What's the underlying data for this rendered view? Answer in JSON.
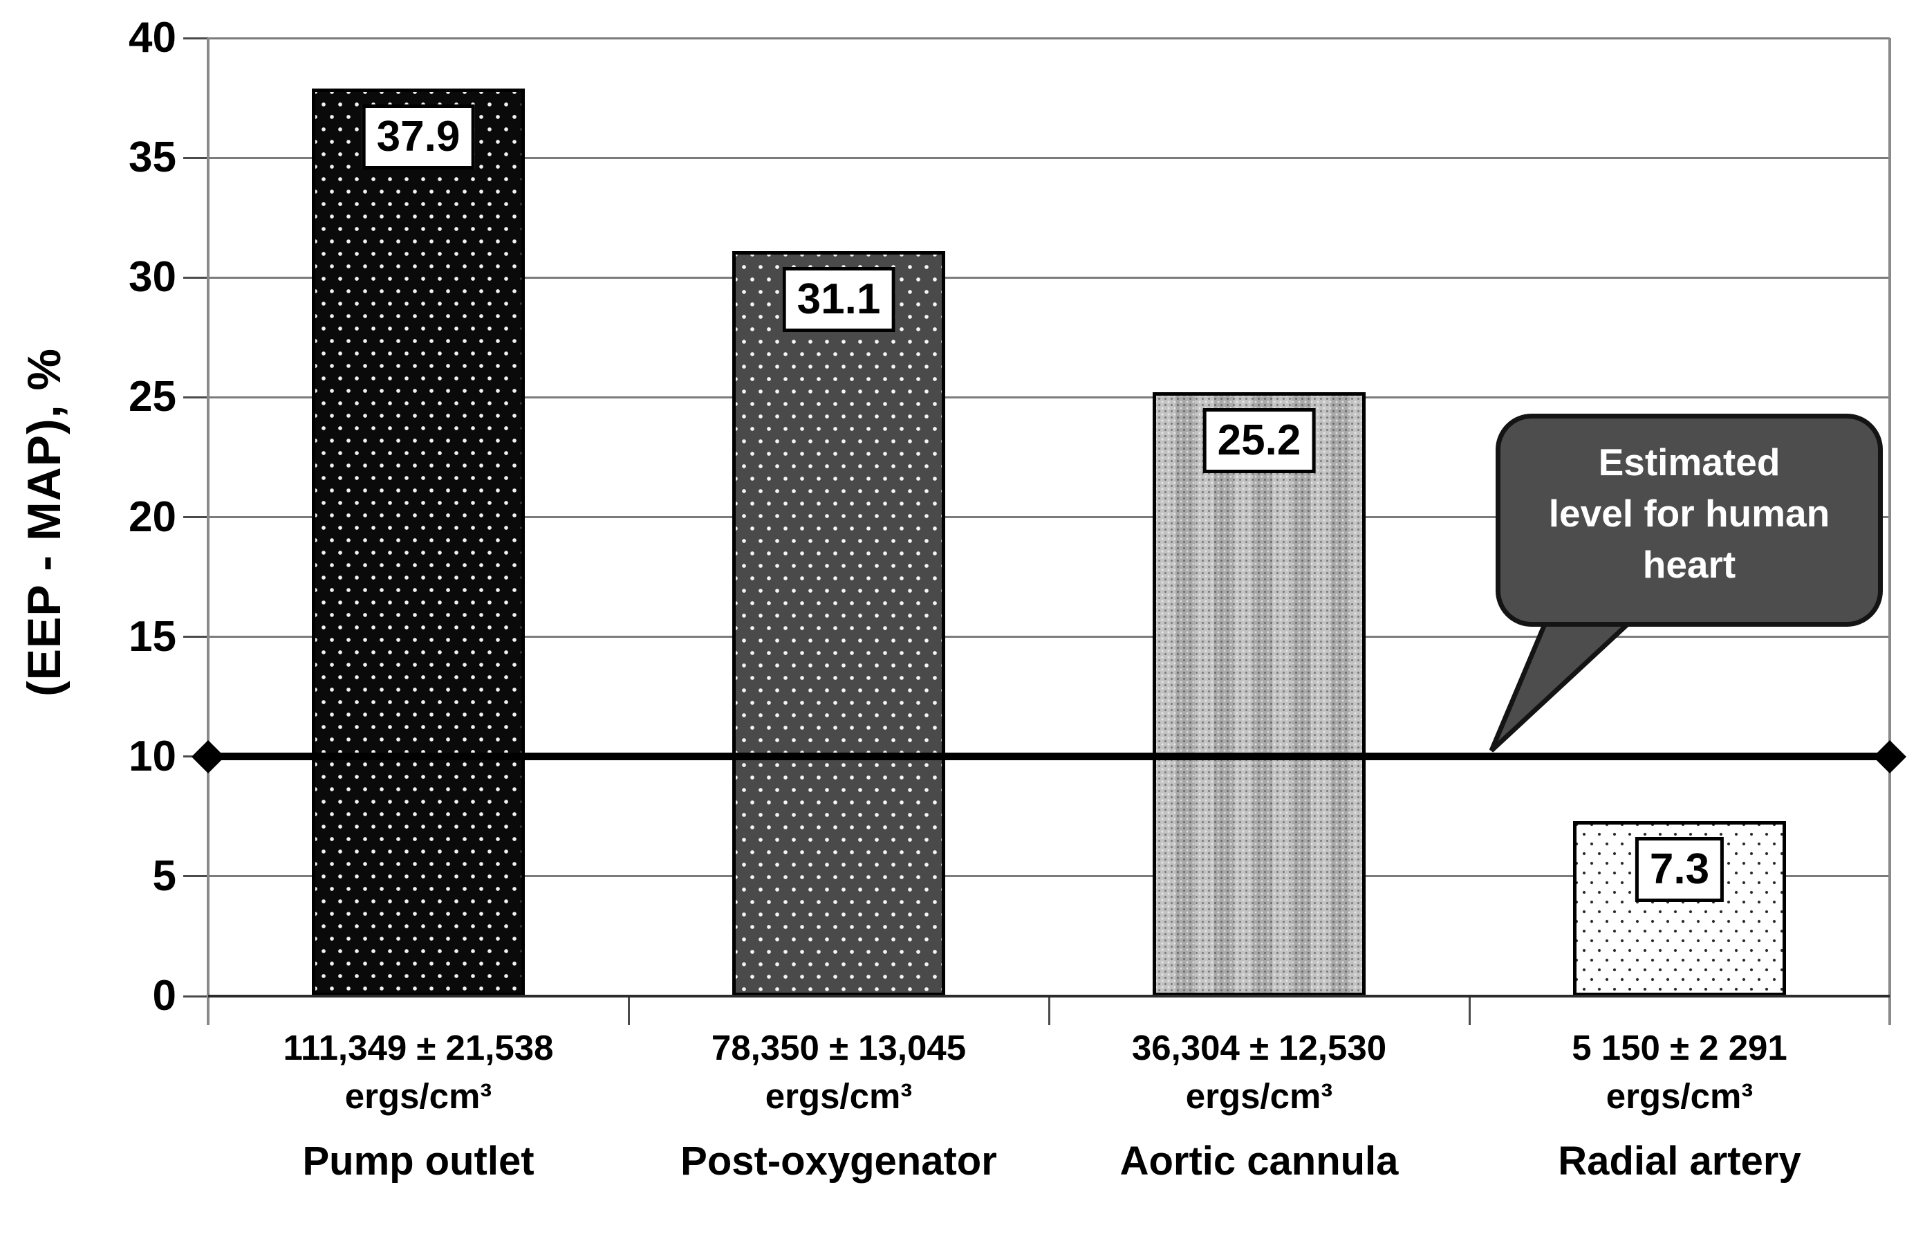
{
  "chart_data": {
    "type": "bar",
    "title": "",
    "xlabel": "",
    "ylabel": "(EEP - MAP), %",
    "ylim": [
      0,
      40
    ],
    "yticks": [
      0,
      5,
      10,
      15,
      20,
      25,
      30,
      35,
      40
    ],
    "grid": true,
    "legend": "none",
    "categories": [
      "Pump outlet",
      "Post-oxygenator",
      "Aortic cannula",
      "Radial artery"
    ],
    "x_value_labels": [
      "111,349 ± 21,538",
      "78,350 ± 13,045",
      "36,304 ± 12,530",
      "5 150 ± 2 291"
    ],
    "x_unit_label": "ergs/cm³",
    "values": [
      37.9,
      31.1,
      25.2,
      7.3
    ],
    "bar_value_labels": [
      "37.9",
      "31.1",
      "25.2",
      "7.3"
    ],
    "bar_patterns": [
      "black-white-dots",
      "darkgray-white-dots",
      "lightgray-weave",
      "white-black-dots"
    ],
    "reference_line": {
      "value": 10,
      "label": "Estimated level for human heart",
      "style": "thick black line with diamond endpoints"
    }
  },
  "annotation": {
    "lines": [
      "Estimated",
      "level for human",
      "heart"
    ]
  },
  "colors": {
    "background": "#ffffff",
    "bar_black": "#0a0a0a",
    "bar_darkgray": "#4a4a4a",
    "bar_lightgray": "#b2b2b2",
    "bar_white": "#ffffff",
    "gridline": "#7b7b7b",
    "axis": "#8a8a8a",
    "reference_line": "#000000",
    "callout_fill": "#4d4d4d",
    "callout_text": "#ffffff"
  }
}
